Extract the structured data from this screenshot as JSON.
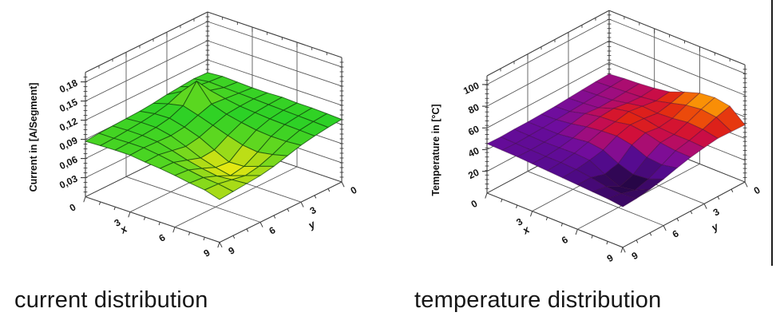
{
  "chart_data": [
    {
      "type": "surface3d",
      "id": "current-distribution",
      "caption": "current distribution",
      "x_axis": {
        "title": "x",
        "range": [
          0,
          9
        ],
        "tick_values": [
          0,
          3,
          6,
          9
        ],
        "tick_labels": [
          "0",
          "3",
          "6",
          "9"
        ]
      },
      "y_axis": {
        "title": "y",
        "range": [
          0,
          9
        ],
        "tick_values": [
          0,
          3,
          6,
          9
        ],
        "tick_labels": [
          "0",
          "3",
          "6",
          "9"
        ]
      },
      "z_axis": {
        "title": "Current in [A/Segment]",
        "range": [
          0,
          0.195
        ],
        "tick_values": [
          0.03,
          0.06,
          0.09,
          0.12,
          0.15,
          0.18
        ],
        "tick_labels": [
          "0,03",
          "0,06",
          "0,09",
          "0,12",
          "0,15",
          "0,18"
        ]
      },
      "surface_colors": {
        "mode": "deviation",
        "center": 0.097,
        "span": 0.04,
        "stops": [
          [
            0,
            "#2bd126"
          ],
          [
            0.45,
            "#66d81f"
          ],
          [
            0.7,
            "#b4dc16"
          ],
          [
            1,
            "#f4ec12"
          ]
        ]
      },
      "grid_size": [
        10,
        10
      ],
      "values": [
        [
          0.1,
          0.101,
          0.099,
          0.097,
          0.094,
          0.092,
          0.091,
          0.09,
          0.089,
          0.087
        ],
        [
          0.102,
          0.104,
          0.107,
          0.11,
          0.101,
          0.096,
          0.093,
          0.091,
          0.089,
          0.088
        ],
        [
          0.101,
          0.103,
          0.109,
          0.134,
          0.106,
          0.097,
          0.093,
          0.091,
          0.09,
          0.089
        ],
        [
          0.1,
          0.102,
          0.104,
          0.106,
          0.099,
          0.091,
          0.088,
          0.089,
          0.09,
          0.089
        ],
        [
          0.1,
          0.101,
          0.1,
          0.098,
          0.091,
          0.083,
          0.079,
          0.083,
          0.087,
          0.086
        ],
        [
          0.101,
          0.1,
          0.098,
          0.093,
          0.083,
          0.071,
          0.069,
          0.076,
          0.083,
          0.084
        ],
        [
          0.1,
          0.099,
          0.096,
          0.089,
          0.076,
          0.06,
          0.062,
          0.071,
          0.079,
          0.081
        ],
        [
          0.1,
          0.098,
          0.095,
          0.087,
          0.073,
          0.061,
          0.057,
          0.067,
          0.075,
          0.077
        ],
        [
          0.099,
          0.097,
          0.094,
          0.087,
          0.077,
          0.069,
          0.065,
          0.069,
          0.073,
          0.074
        ],
        [
          0.098,
          0.096,
          0.093,
          0.089,
          0.083,
          0.077,
          0.073,
          0.071,
          0.069,
          0.067
        ]
      ]
    },
    {
      "type": "surface3d",
      "id": "temperature-distribution",
      "caption": "temperature distribution",
      "x_axis": {
        "title": "x",
        "range": [
          0,
          9
        ],
        "tick_values": [
          0,
          3,
          6,
          9
        ],
        "tick_labels": [
          "0",
          "3",
          "6",
          "9"
        ]
      },
      "y_axis": {
        "title": "y",
        "range": [
          0,
          9
        ],
        "tick_values": [
          0,
          3,
          6,
          9
        ],
        "tick_labels": [
          "0",
          "3",
          "6",
          "9"
        ]
      },
      "z_axis": {
        "title": "Temperature in [°C]",
        "range": [
          0,
          108
        ],
        "tick_values": [
          20,
          40,
          60,
          80,
          100
        ],
        "tick_labels": [
          "20",
          "40",
          "60",
          "80",
          "100"
        ]
      },
      "surface_colors": {
        "mode": "linear",
        "domain": [
          0,
          100
        ],
        "stops": [
          [
            0,
            "#000000"
          ],
          [
            0.12,
            "#0d0220"
          ],
          [
            0.2,
            "#22063f"
          ],
          [
            0.3,
            "#3c0866"
          ],
          [
            0.4,
            "#540b8e"
          ],
          [
            0.48,
            "#6e0d9e"
          ],
          [
            0.55,
            "#970d86"
          ],
          [
            0.6,
            "#b80d62"
          ],
          [
            0.65,
            "#cf0d3e"
          ],
          [
            0.7,
            "#e02414"
          ],
          [
            0.78,
            "#ef5608"
          ],
          [
            0.86,
            "#f98c06"
          ],
          [
            0.93,
            "#fcb607"
          ],
          [
            1,
            "#ffd91e"
          ]
        ]
      },
      "grid_size": [
        10,
        10
      ],
      "values": [
        [
          55,
          54,
          52,
          50,
          48,
          47,
          46,
          46,
          45,
          46
        ],
        [
          58,
          56,
          54,
          52,
          50,
          48,
          46,
          45,
          44,
          45
        ],
        [
          60,
          58,
          56,
          55,
          58,
          52,
          46,
          44,
          43,
          44
        ],
        [
          63,
          60,
          62,
          66,
          64,
          58,
          50,
          45,
          42,
          42
        ],
        [
          68,
          64,
          68,
          72,
          66,
          62,
          54,
          46,
          42,
          40
        ],
        [
          80,
          72,
          66,
          70,
          72,
          64,
          50,
          44,
          40,
          38
        ],
        [
          90,
          80,
          68,
          64,
          68,
          58,
          35,
          28,
          36,
          36
        ],
        [
          93,
          84,
          72,
          62,
          60,
          45,
          25,
          15,
          30,
          34
        ],
        [
          88,
          80,
          70,
          62,
          56,
          42,
          28,
          20,
          28,
          32
        ],
        [
          62,
          63,
          64,
          60,
          55,
          48,
          40,
          34,
          30,
          28
        ]
      ]
    }
  ]
}
